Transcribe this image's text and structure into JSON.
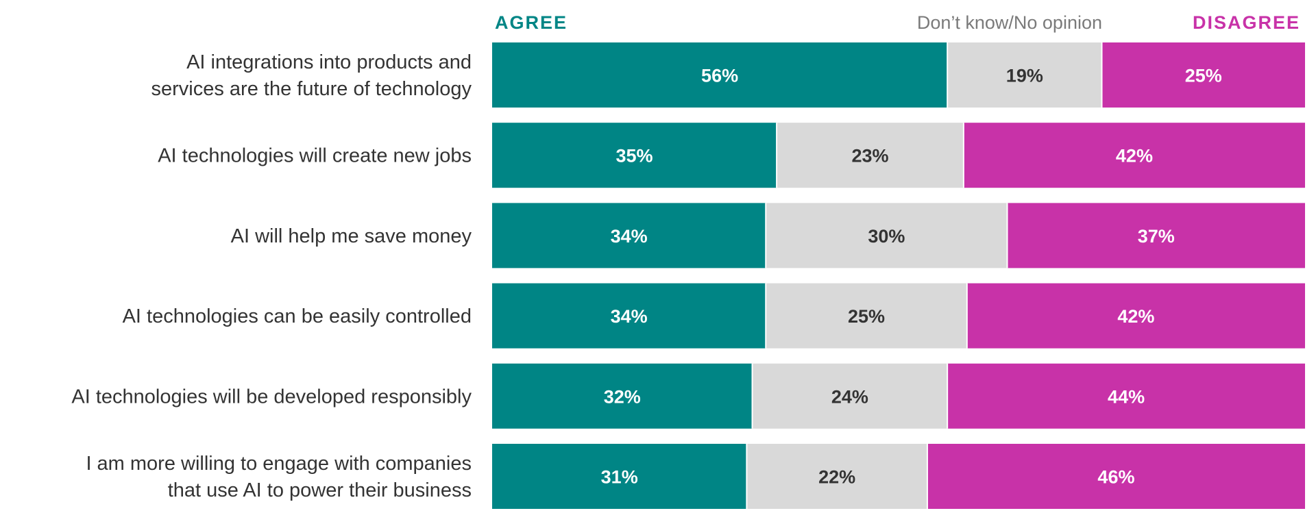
{
  "legend": {
    "agree": "AGREE",
    "dont_know": "Don’t know/No opinion",
    "disagree": "DISAGREE"
  },
  "colors": {
    "agree": "#008585",
    "dont_know": "#d9d9d9",
    "disagree": "#c832a8",
    "label_text": "#333333",
    "dont_know_legend": "#7a7a7a",
    "separator": "#ffffff"
  },
  "chart_data": {
    "type": "bar",
    "orientation": "horizontal",
    "stacked": true,
    "normalized": true,
    "categories": [
      [
        "AI integrations into products and",
        "services are the future of technology"
      ],
      [
        "AI technologies will create new jobs"
      ],
      [
        "AI will help me save money"
      ],
      [
        "AI technologies can be easily controlled"
      ],
      [
        "AI technologies will be developed responsibly"
      ],
      [
        "I am more willing to engage with companies",
        "that use AI to power their business"
      ]
    ],
    "series": [
      {
        "name": "AGREE",
        "values": [
          56,
          35,
          34,
          34,
          32,
          31
        ],
        "labels": [
          "56%",
          "35%",
          "34%",
          "34%",
          "32%",
          "31%"
        ]
      },
      {
        "name": "Don’t know/No opinion",
        "values": [
          19,
          23,
          30,
          25,
          24,
          22
        ],
        "labels": [
          "19%",
          "23%",
          "30%",
          "25%",
          "24%",
          "22%"
        ]
      },
      {
        "name": "DISAGREE",
        "values": [
          25,
          42,
          37,
          42,
          44,
          46
        ],
        "labels": [
          "25%",
          "42%",
          "37%",
          "42%",
          "44%",
          "46%"
        ]
      }
    ],
    "legend_position": "top",
    "grid": false
  }
}
